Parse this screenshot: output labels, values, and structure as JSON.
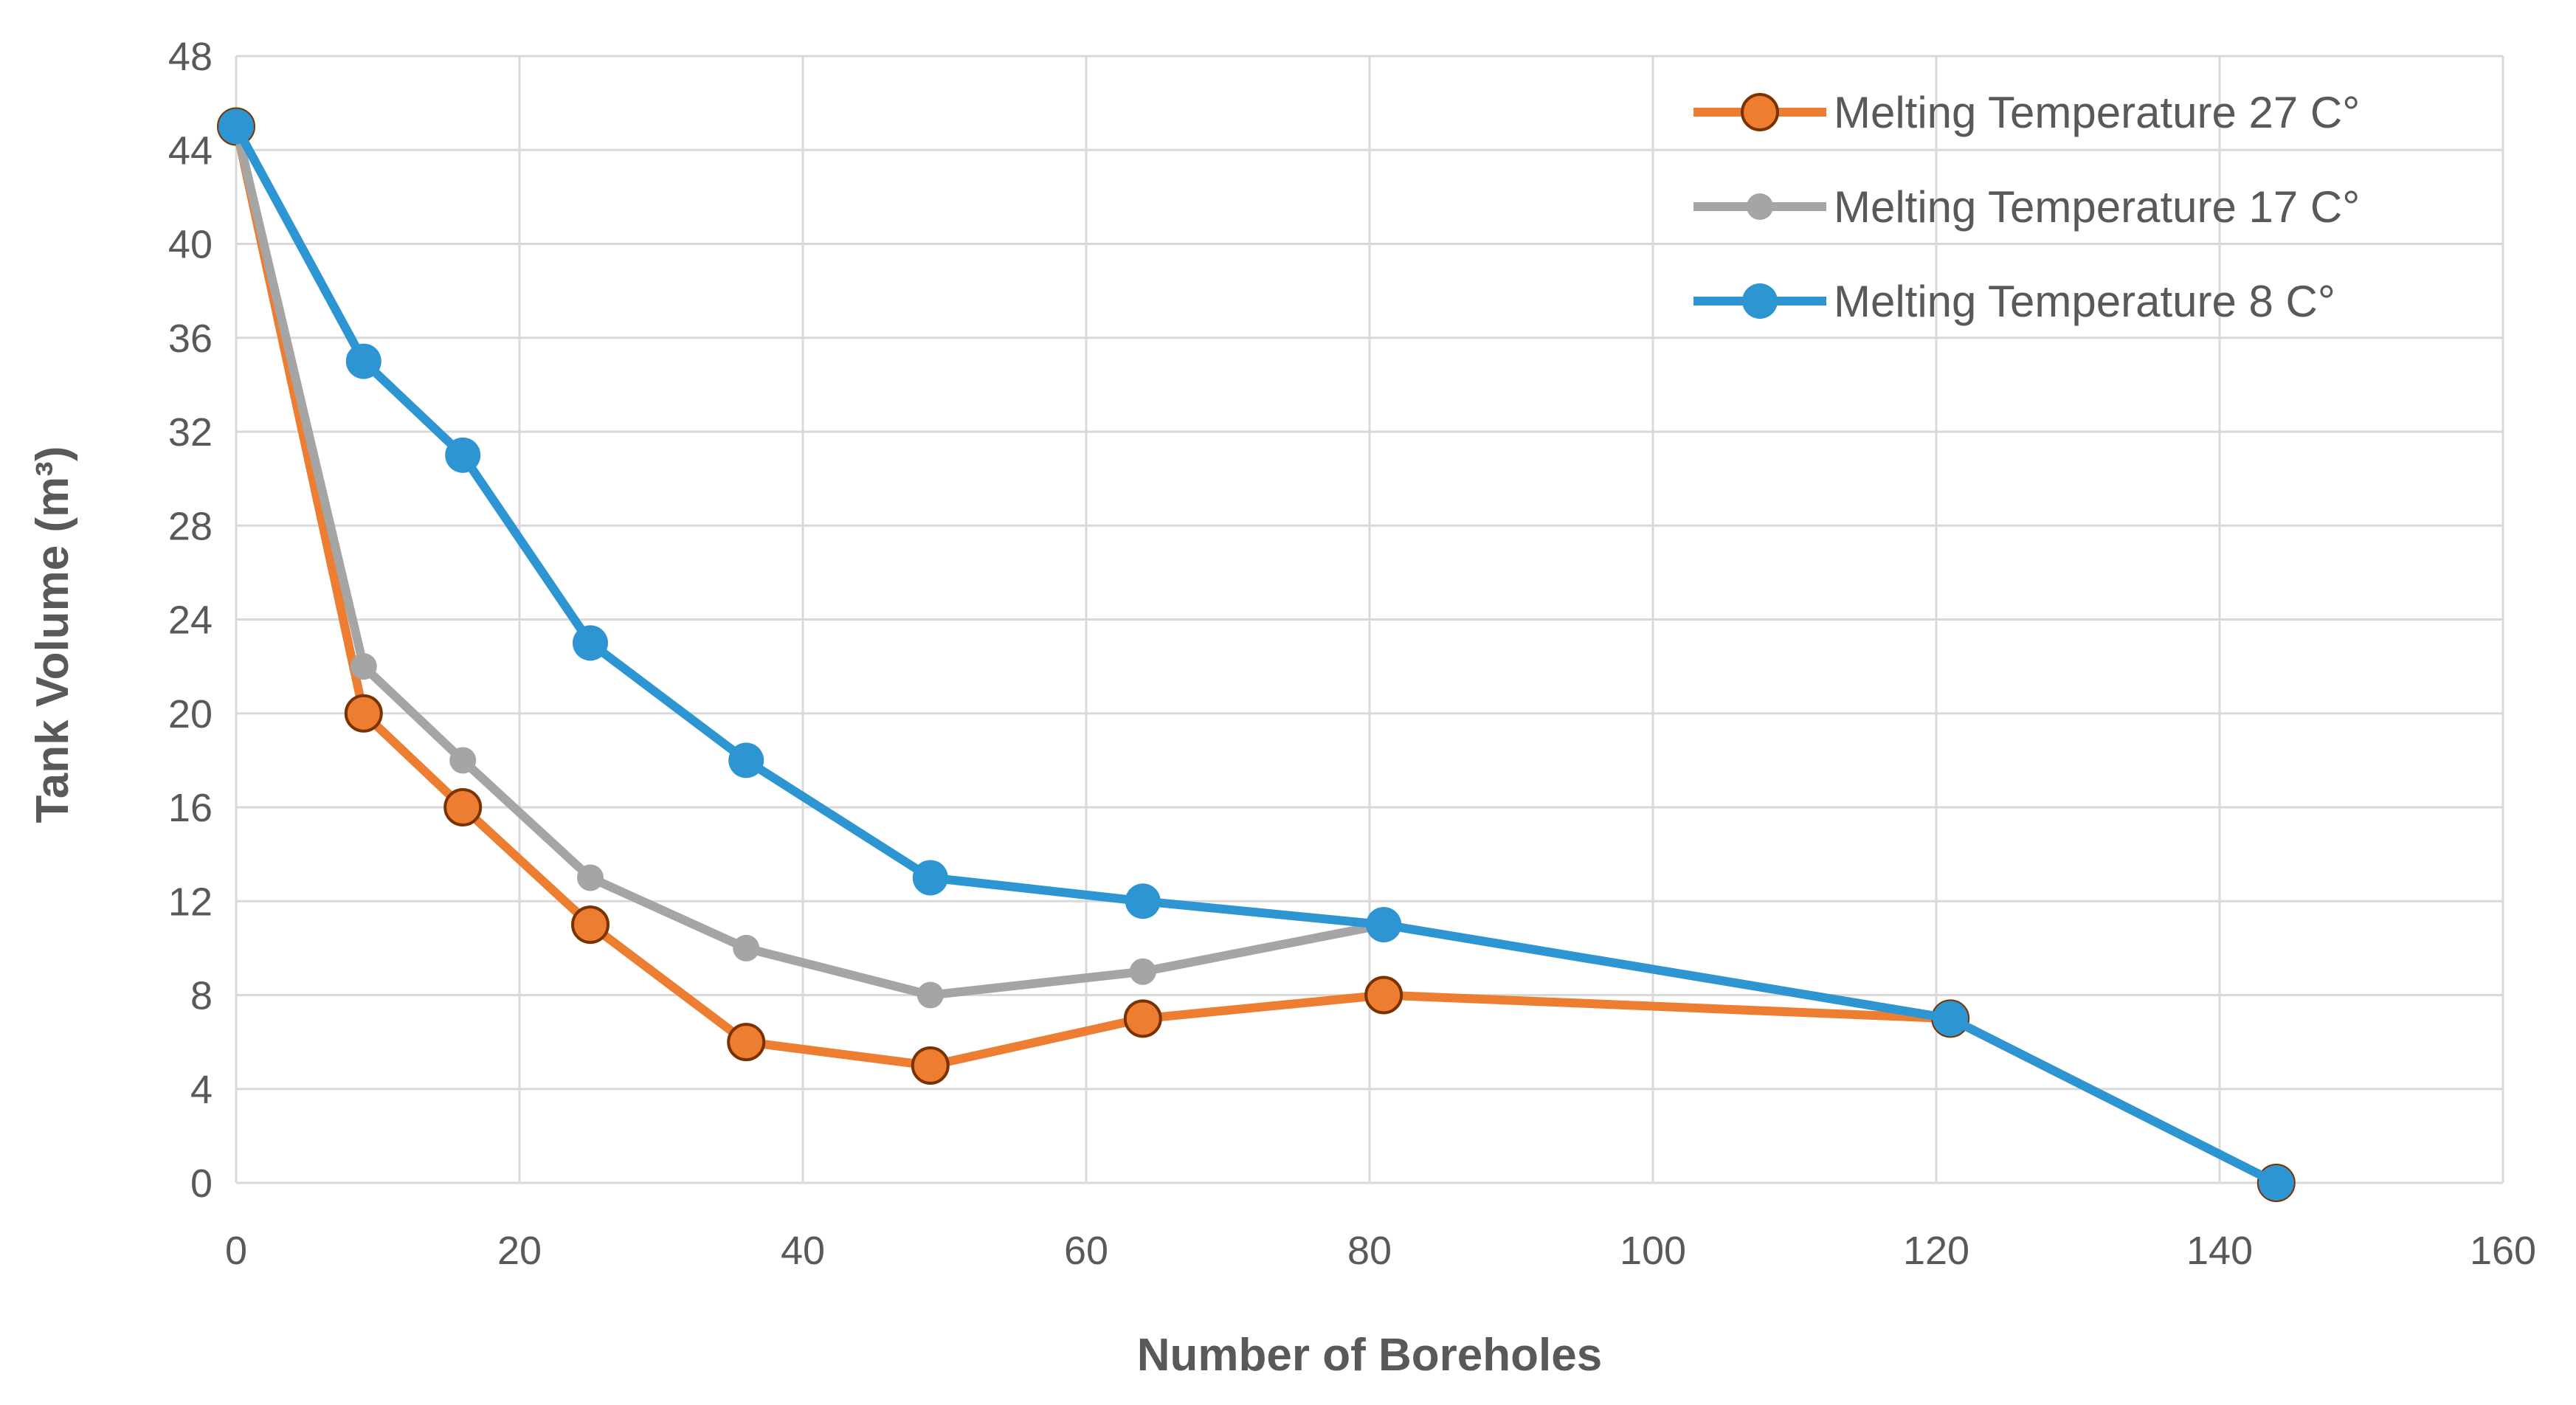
{
  "chart_data": {
    "type": "line",
    "title": "",
    "xlabel": "Number of Boreholes",
    "ylabel": "Tank Volume (m³)",
    "xlim": [
      0,
      160
    ],
    "ylim": [
      0,
      48
    ],
    "xticks": [
      0,
      20,
      40,
      60,
      80,
      100,
      120,
      140,
      160
    ],
    "yticks": [
      0,
      4,
      8,
      12,
      16,
      20,
      24,
      28,
      32,
      36,
      40,
      44,
      48
    ],
    "grid": true,
    "legend_position": "top-right",
    "series": [
      {
        "name": "Melting Temperature 27 C°",
        "color": "#ED7D31",
        "points": [
          [
            0,
            45
          ],
          [
            9,
            20
          ],
          [
            16,
            16
          ],
          [
            25,
            11
          ],
          [
            36,
            6
          ],
          [
            49,
            5
          ],
          [
            64,
            7
          ],
          [
            81,
            8
          ],
          [
            121,
            7
          ],
          [
            144,
            0
          ]
        ]
      },
      {
        "name": "Melting Temperature 17 C°",
        "color": "#A5A5A5",
        "points": [
          [
            0,
            45
          ],
          [
            9,
            22
          ],
          [
            16,
            18
          ],
          [
            25,
            13
          ],
          [
            36,
            10
          ],
          [
            49,
            8
          ],
          [
            64,
            9
          ],
          [
            81,
            11
          ],
          [
            121,
            7
          ],
          [
            144,
            0
          ]
        ]
      },
      {
        "name": "Melting Temperature 8 C°",
        "color": "#2E95D3",
        "points": [
          [
            0,
            45
          ],
          [
            9,
            35
          ],
          [
            16,
            31
          ],
          [
            25,
            23
          ],
          [
            36,
            18
          ],
          [
            49,
            13
          ],
          [
            64,
            12
          ],
          [
            81,
            11
          ],
          [
            121,
            7
          ],
          [
            144,
            0
          ]
        ]
      }
    ]
  }
}
